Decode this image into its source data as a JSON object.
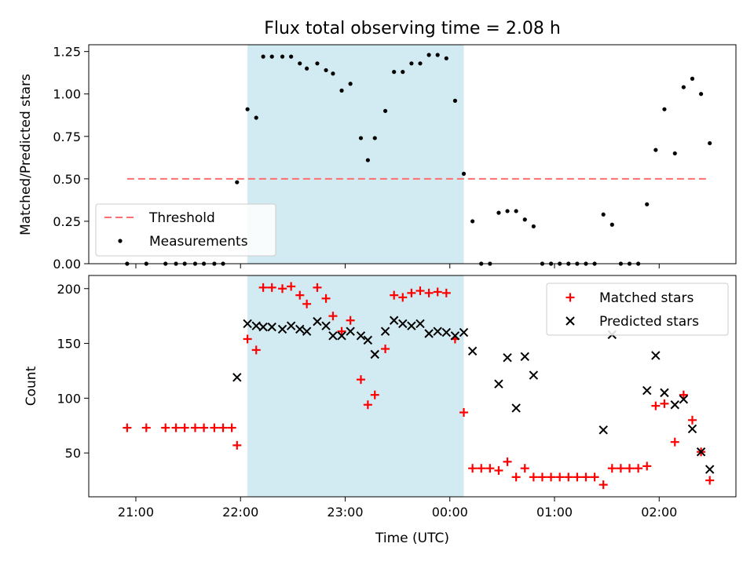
{
  "title": "Flux total observing time = 2.08 h",
  "xlabel": "Time (UTC)",
  "x_ticks": [
    "21:00",
    "22:00",
    "23:00",
    "00:00",
    "01:00",
    "02:00"
  ],
  "colors": {
    "shade": "#add8e6",
    "threshold": "#ff6f6f",
    "matched": "#ff0000",
    "predicted": "#000000",
    "measurements": "#000000"
  },
  "chart_data": [
    {
      "type": "scatter",
      "ylabel": "Matched/Predicted stars",
      "ylim": [
        0,
        1.29
      ],
      "y_ticks": [
        "0.00",
        "0.25",
        "0.50",
        "0.75",
        "1.00",
        "1.25"
      ],
      "x_range": [
        "20:33",
        "02:44"
      ],
      "shaded_interval": [
        "22:04",
        "00:08"
      ],
      "legend": {
        "position": "lower-left",
        "entries": [
          "Threshold",
          "Measurements"
        ]
      },
      "threshold": {
        "name": "Threshold",
        "value": 0.5,
        "x_from": "20:55",
        "x_to": "02:29"
      },
      "series": [
        {
          "name": "Measurements",
          "points": [
            [
              "20:55",
              0.0
            ],
            [
              "21:06",
              0.0
            ],
            [
              "21:17",
              0.0
            ],
            [
              "21:23",
              0.0
            ],
            [
              "21:28",
              0.0
            ],
            [
              "21:34",
              0.0
            ],
            [
              "21:39",
              0.0
            ],
            [
              "21:45",
              0.0
            ],
            [
              "21:50",
              0.0
            ],
            [
              "21:58",
              0.48
            ],
            [
              "22:04",
              0.91
            ],
            [
              "22:09",
              0.86
            ],
            [
              "22:13",
              1.22
            ],
            [
              "22:18",
              1.22
            ],
            [
              "22:24",
              1.22
            ],
            [
              "22:29",
              1.22
            ],
            [
              "22:34",
              1.18
            ],
            [
              "22:38",
              1.15
            ],
            [
              "22:44",
              1.18
            ],
            [
              "22:49",
              1.14
            ],
            [
              "22:53",
              1.12
            ],
            [
              "22:58",
              1.02
            ],
            [
              "23:03",
              1.06
            ],
            [
              "23:09",
              0.74
            ],
            [
              "23:13",
              0.61
            ],
            [
              "23:17",
              0.74
            ],
            [
              "23:23",
              0.9
            ],
            [
              "23:28",
              1.13
            ],
            [
              "23:33",
              1.13
            ],
            [
              "23:38",
              1.18
            ],
            [
              "23:43",
              1.18
            ],
            [
              "23:48",
              1.23
            ],
            [
              "23:53",
              1.23
            ],
            [
              "23:58",
              1.21
            ],
            [
              "00:03",
              0.96
            ],
            [
              "00:08",
              0.53
            ],
            [
              "00:13",
              0.25
            ],
            [
              "00:18",
              0.0
            ],
            [
              "00:23",
              0.0
            ],
            [
              "00:28",
              0.3
            ],
            [
              "00:33",
              0.31
            ],
            [
              "00:38",
              0.31
            ],
            [
              "00:43",
              0.26
            ],
            [
              "00:48",
              0.22
            ],
            [
              "00:53",
              0.0
            ],
            [
              "00:58",
              0.0
            ],
            [
              "01:03",
              0.0
            ],
            [
              "01:08",
              0.0
            ],
            [
              "01:13",
              0.0
            ],
            [
              "01:18",
              0.0
            ],
            [
              "01:23",
              0.0
            ],
            [
              "01:28",
              0.29
            ],
            [
              "01:33",
              0.23
            ],
            [
              "01:38",
              0.0
            ],
            [
              "01:43",
              0.0
            ],
            [
              "01:48",
              0.0
            ],
            [
              "01:53",
              0.35
            ],
            [
              "01:58",
              0.67
            ],
            [
              "02:03",
              0.91
            ],
            [
              "02:09",
              0.65
            ],
            [
              "02:14",
              1.04
            ],
            [
              "02:19",
              1.09
            ],
            [
              "02:24",
              1.0
            ],
            [
              "02:29",
              0.71
            ]
          ]
        }
      ]
    },
    {
      "type": "scatter",
      "ylabel": "Count",
      "ylim": [
        10,
        212
      ],
      "y_ticks": [
        "50",
        "100",
        "150",
        "200"
      ],
      "x_range": [
        "20:33",
        "02:44"
      ],
      "shaded_interval": [
        "22:04",
        "00:08"
      ],
      "legend": {
        "position": "top-right",
        "entries": [
          "Matched stars",
          "Predicted stars"
        ]
      },
      "series": [
        {
          "name": "Matched stars",
          "marker": "plus",
          "points": [
            [
              "20:55",
              73
            ],
            [
              "21:06",
              73
            ],
            [
              "21:17",
              73
            ],
            [
              "21:23",
              73
            ],
            [
              "21:28",
              73
            ],
            [
              "21:34",
              73
            ],
            [
              "21:39",
              73
            ],
            [
              "21:45",
              73
            ],
            [
              "21:50",
              73
            ],
            [
              "21:55",
              73
            ],
            [
              "21:58",
              57
            ],
            [
              "22:04",
              154
            ],
            [
              "22:09",
              144
            ],
            [
              "22:13",
              201
            ],
            [
              "22:18",
              201
            ],
            [
              "22:24",
              200
            ],
            [
              "22:29",
              202
            ],
            [
              "22:34",
              194
            ],
            [
              "22:38",
              186
            ],
            [
              "22:44",
              201
            ],
            [
              "22:49",
              191
            ],
            [
              "22:53",
              175
            ],
            [
              "22:58",
              161
            ],
            [
              "23:03",
              171
            ],
            [
              "23:09",
              117
            ],
            [
              "23:13",
              94
            ],
            [
              "23:17",
              103
            ],
            [
              "23:23",
              145
            ],
            [
              "23:28",
              194
            ],
            [
              "23:33",
              192
            ],
            [
              "23:38",
              196
            ],
            [
              "23:43",
              198
            ],
            [
              "23:48",
              196
            ],
            [
              "23:53",
              197
            ],
            [
              "23:58",
              196
            ],
            [
              "00:03",
              154
            ],
            [
              "00:08",
              87
            ],
            [
              "00:13",
              36
            ],
            [
              "00:18",
              36
            ],
            [
              "00:23",
              36
            ],
            [
              "00:28",
              34
            ],
            [
              "00:33",
              42
            ],
            [
              "00:38",
              28
            ],
            [
              "00:43",
              36
            ],
            [
              "00:48",
              28
            ],
            [
              "00:53",
              28
            ],
            [
              "00:58",
              28
            ],
            [
              "01:03",
              28
            ],
            [
              "01:08",
              28
            ],
            [
              "01:13",
              28
            ],
            [
              "01:18",
              28
            ],
            [
              "01:23",
              28
            ],
            [
              "01:28",
              21
            ],
            [
              "01:33",
              36
            ],
            [
              "01:38",
              36
            ],
            [
              "01:43",
              36
            ],
            [
              "01:48",
              36
            ],
            [
              "01:53",
              38
            ],
            [
              "01:58",
              93
            ],
            [
              "02:03",
              95
            ],
            [
              "02:09",
              60
            ],
            [
              "02:14",
              103
            ],
            [
              "02:19",
              80
            ],
            [
              "02:24",
              51
            ],
            [
              "02:29",
              25
            ]
          ]
        },
        {
          "name": "Predicted stars",
          "marker": "x",
          "points": [
            [
              "21:58",
              119
            ],
            [
              "22:04",
              168
            ],
            [
              "22:09",
              166
            ],
            [
              "22:13",
              165
            ],
            [
              "22:18",
              165
            ],
            [
              "22:24",
              163
            ],
            [
              "22:29",
              166
            ],
            [
              "22:34",
              163
            ],
            [
              "22:38",
              161
            ],
            [
              "22:44",
              170
            ],
            [
              "22:49",
              166
            ],
            [
              "22:53",
              157
            ],
            [
              "22:58",
              157
            ],
            [
              "23:03",
              161
            ],
            [
              "23:09",
              157
            ],
            [
              "23:13",
              153
            ],
            [
              "23:17",
              140
            ],
            [
              "23:23",
              161
            ],
            [
              "23:28",
              171
            ],
            [
              "23:33",
              168
            ],
            [
              "23:38",
              166
            ],
            [
              "23:43",
              168
            ],
            [
              "23:48",
              159
            ],
            [
              "23:53",
              161
            ],
            [
              "23:58",
              160
            ],
            [
              "00:03",
              157
            ],
            [
              "00:08",
              160
            ],
            [
              "00:13",
              143
            ],
            [
              "00:28",
              113
            ],
            [
              "00:33",
              137
            ],
            [
              "00:38",
              91
            ],
            [
              "00:43",
              138
            ],
            [
              "00:48",
              121
            ],
            [
              "01:28",
              71
            ],
            [
              "01:33",
              158
            ],
            [
              "01:53",
              107
            ],
            [
              "01:58",
              139
            ],
            [
              "02:03",
              105
            ],
            [
              "02:09",
              94
            ],
            [
              "02:14",
              99
            ],
            [
              "02:19",
              72
            ],
            [
              "02:24",
              51
            ],
            [
              "02:29",
              35
            ]
          ]
        }
      ]
    }
  ]
}
